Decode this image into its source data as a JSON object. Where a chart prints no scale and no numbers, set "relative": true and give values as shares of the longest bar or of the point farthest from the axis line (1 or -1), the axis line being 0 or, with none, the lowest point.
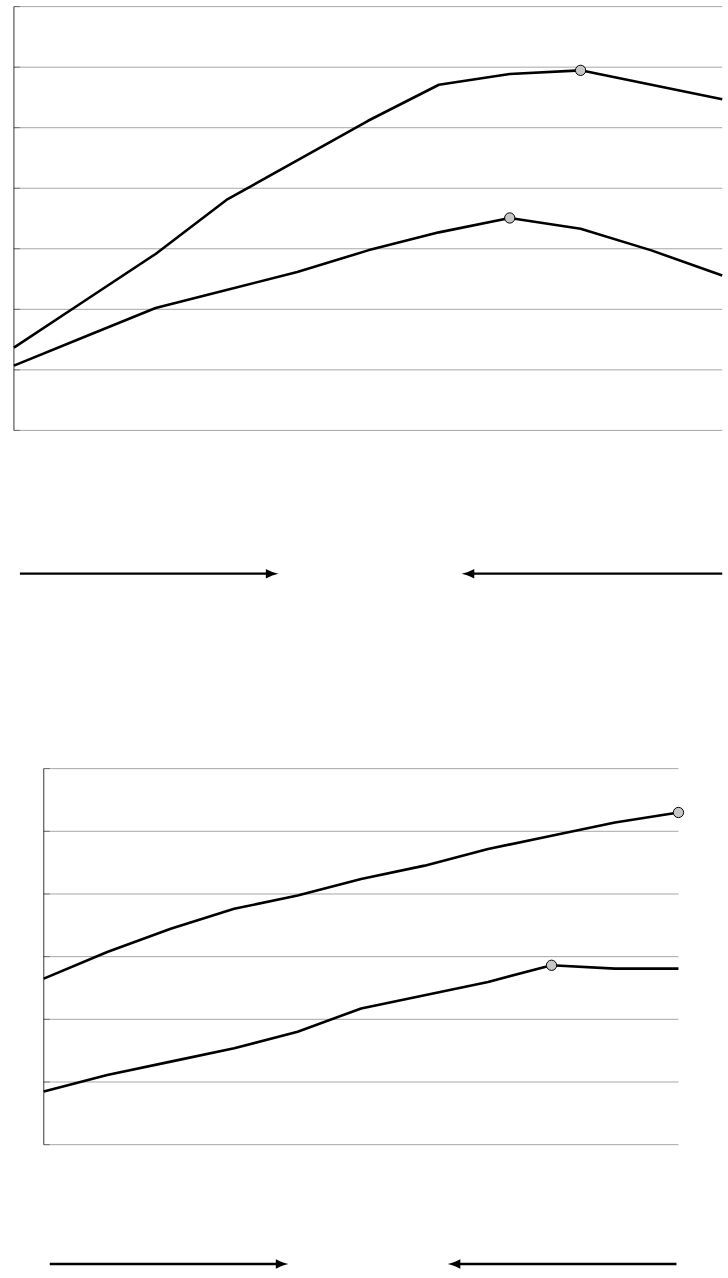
{
  "chart_data": [
    {
      "type": "line",
      "relative": true,
      "grid": true,
      "tick_labels": false,
      "categories": [
        null,
        null,
        null,
        null,
        null,
        null,
        null,
        null,
        null,
        null,
        null
      ],
      "series": [
        {
          "values": [
            0.23,
            0.36,
            0.49,
            0.64,
            0.75,
            0.86,
            0.96,
            0.99,
            1,
            0.96,
            0.92
          ],
          "color": "#000000"
        },
        {
          "values": [
            0.18,
            0.26,
            0.34,
            0.39,
            0.44,
            0.5,
            0.55,
            0.59,
            0.56,
            0.5,
            0.43
          ],
          "color": "#000000"
        }
      ]
    },
    {
      "type": "line",
      "relative": true,
      "grid": true,
      "tick_labels": false,
      "categories": [
        null,
        null,
        null,
        null,
        null,
        null,
        null,
        null,
        null,
        null,
        null
      ],
      "series": [
        {
          "values": [
            0.5,
            0.58,
            0.65,
            0.71,
            0.75,
            0.8,
            0.84,
            0.89,
            0.93,
            0.97,
            1
          ],
          "color": "#000000"
        },
        {
          "values": [
            0.16,
            0.21,
            0.25,
            0.29,
            0.34,
            0.41,
            0.45,
            0.49,
            0.54,
            0.53,
            0.53
          ],
          "color": "#000000"
        }
      ]
    }
  ]
}
